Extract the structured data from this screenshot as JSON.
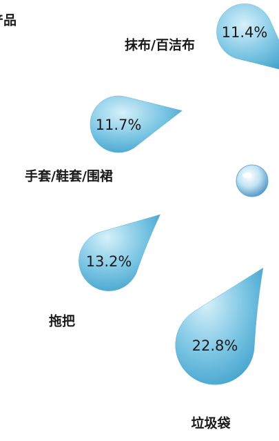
{
  "chart_data": {
    "type": "drop",
    "title": "产品",
    "categories": [
      "抹布/百洁布",
      "手套/鞋套/围裙",
      "拖把",
      "垃圾袋"
    ],
    "values": [
      11.4,
      11.7,
      13.2,
      22.8
    ],
    "value_labels": [
      "11.4%",
      "11.7%",
      "13.2%",
      "22.8%"
    ],
    "color": "#5fb4d8"
  }
}
